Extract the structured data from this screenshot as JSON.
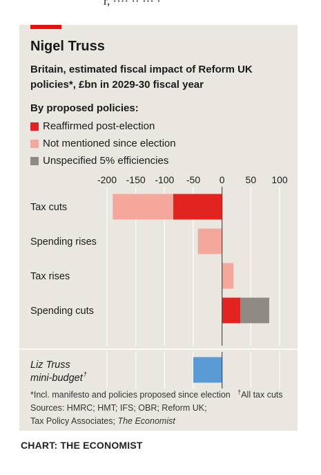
{
  "header_fragment": "r, ···· ·· ··· ·",
  "title": "Nigel Truss",
  "subtitle": "Britain, estimated fiscal impact of Reform UK policies*, £bn in 2029-30 fiscal year",
  "legend_title": "By proposed policies:",
  "legend": [
    {
      "label": "Reaffirmed post-election",
      "color": "#e3231f"
    },
    {
      "label": "Not mentioned since election",
      "color": "#f4a79a"
    },
    {
      "label": "Unspecified 5% efficiencies",
      "color": "#8d8b84"
    }
  ],
  "chart_data": {
    "type": "bar",
    "orientation": "horizontal",
    "stacked": true,
    "title": "Nigel Truss",
    "subtitle": "Britain, estimated fiscal impact of Reform UK policies*, £bn in 2029-30 fiscal year",
    "xlim": [
      -200,
      100
    ],
    "xticks": [
      -200,
      -150,
      -100,
      -50,
      0,
      50,
      100
    ],
    "xtick_labels": [
      "-200",
      "-150",
      "-100",
      "-50",
      "0",
      "50",
      "100"
    ],
    "x_axis_position": "top",
    "grid": true,
    "legend_placement": "top-left",
    "categories": [
      "Tax cuts",
      "Spending rises",
      "Tax rises",
      "Spending cuts"
    ],
    "series": [
      {
        "name": "Reaffirmed post-election",
        "color": "#e3231f",
        "values": [
          -85,
          0,
          0,
          32
        ]
      },
      {
        "name": "Not mentioned since election",
        "color": "#f4a79a",
        "values": [
          -105,
          -42,
          20,
          0
        ]
      },
      {
        "name": "Unspecified 5% efficiencies",
        "color": "#8d8b84",
        "values": [
          0,
          0,
          0,
          50
        ]
      }
    ],
    "comparison": {
      "label_line1": "Liz Truss",
      "label_line2": "mini-budget",
      "label_mark": "†",
      "value": -50,
      "color": "#5b9bd5"
    }
  },
  "footnotes": {
    "line1_main": "*Incl. manifesto and policies proposed since election",
    "line1_mark": "†",
    "line1_end": "All tax cuts",
    "line2": "Sources: HMRC; HMT; IFS; OBR; Reform UK;",
    "line3_start": "Tax Policy Associates; ",
    "line3_italic": "The Economist"
  },
  "credit": "CHART: THE ECONOMIST"
}
